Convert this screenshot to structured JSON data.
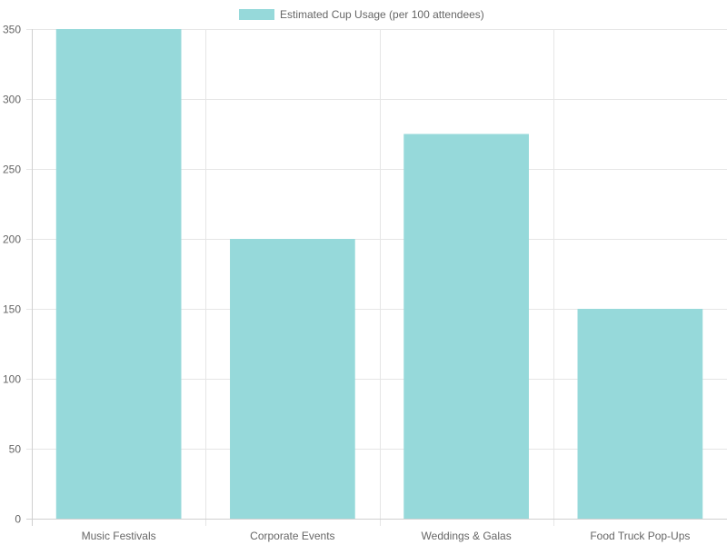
{
  "chart_data": {
    "type": "bar",
    "legend": {
      "position": "top",
      "entries": [
        {
          "label": "Estimated Cup Usage (per 100 attendees)",
          "color": "#96d9da"
        }
      ]
    },
    "categories": [
      "Music Festivals",
      "Corporate Events",
      "Weddings & Galas",
      "Food Truck Pop-Ups"
    ],
    "series": [
      {
        "name": "Estimated Cup Usage (per 100 attendees)",
        "values": [
          350,
          200,
          275,
          150
        ],
        "color": "#96d9da"
      }
    ],
    "y_ticks": [
      "0",
      "50",
      "100",
      "150",
      "200",
      "250",
      "300",
      "350"
    ],
    "ylim": [
      0,
      350
    ],
    "grid": true,
    "title": "",
    "xlabel": "",
    "ylabel": ""
  }
}
